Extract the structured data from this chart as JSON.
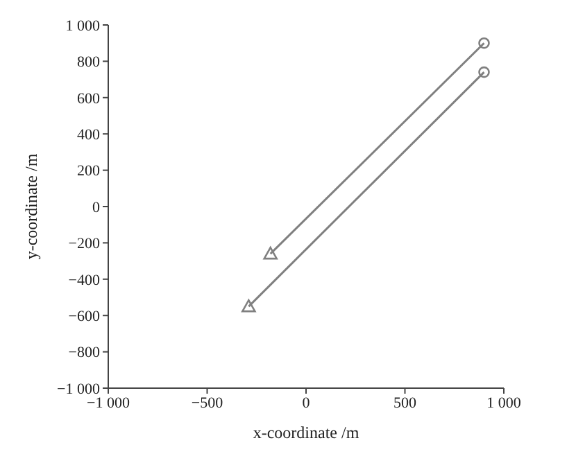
{
  "chart_data": {
    "type": "line",
    "xlabel": "x-coordinate /m",
    "ylabel": "y-coordinate /m",
    "xlim": [
      -1000,
      1000
    ],
    "xticks": [
      {
        "value": -1000,
        "label": "−1 000"
      },
      {
        "value": -500,
        "label": "−500"
      },
      0,
      500,
      {
        "value": 1000,
        "label": "1 000"
      }
    ],
    "ylim": [
      -1000,
      1000
    ],
    "yticks": [
      {
        "value": -1000,
        "label": "−1 000"
      },
      {
        "value": -800,
        "label": "−800"
      },
      {
        "value": -600,
        "label": "−600"
      },
      {
        "value": -400,
        "label": "−400"
      },
      {
        "value": -200,
        "label": "−200"
      },
      0,
      200,
      400,
      600,
      800,
      {
        "value": 1000,
        "label": "1 000"
      }
    ],
    "grid": false,
    "series": [
      {
        "color": "#808080",
        "marker": "none",
        "x": [
          -180,
          900
        ],
        "values": [
          -260,
          900
        ]
      },
      {
        "color": "#808080",
        "marker": "none",
        "x": [
          -290,
          900
        ],
        "values": [
          -550,
          740
        ]
      },
      {
        "type": "scatter",
        "color": "#808080",
        "marker": "triangle",
        "x": [
          -180,
          -290
        ],
        "values": [
          -260,
          -550
        ]
      },
      {
        "type": "scatter",
        "color": "#808080",
        "marker": "circle",
        "x": [
          900,
          900
        ],
        "values": [
          900,
          740
        ]
      }
    ]
  }
}
